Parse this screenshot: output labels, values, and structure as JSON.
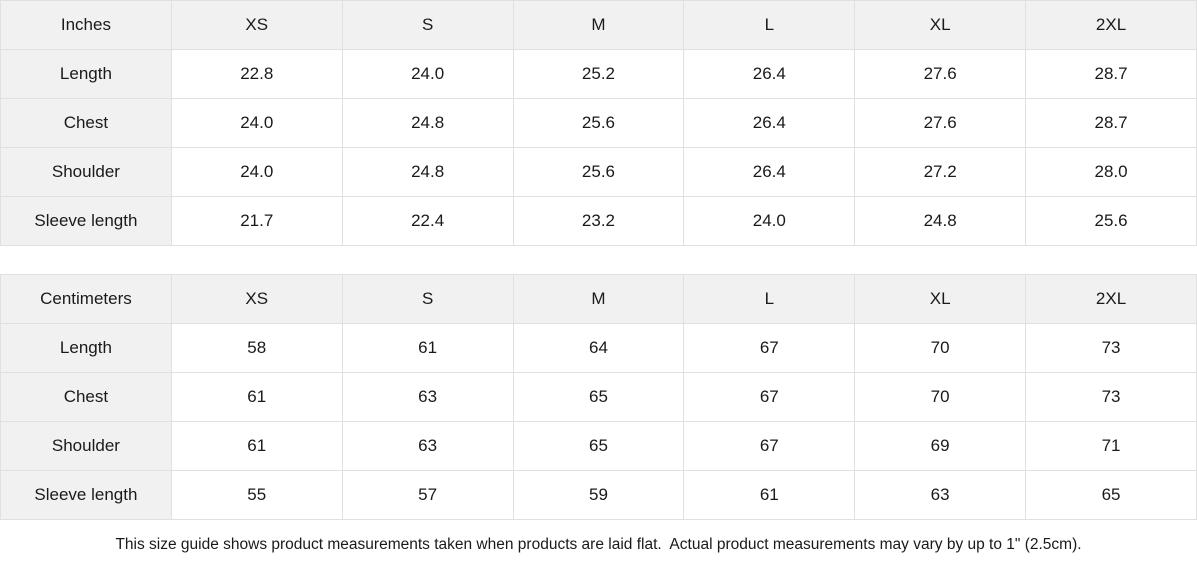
{
  "chart_data": [
    {
      "type": "table",
      "title": "Inches",
      "columns": [
        "XS",
        "S",
        "M",
        "L",
        "XL",
        "2XL"
      ],
      "rows": [
        {
          "label": "Length",
          "values": [
            "22.8",
            "24.0",
            "25.2",
            "26.4",
            "27.6",
            "28.7"
          ]
        },
        {
          "label": "Chest",
          "values": [
            "24.0",
            "24.8",
            "25.6",
            "26.4",
            "27.6",
            "28.7"
          ]
        },
        {
          "label": "Shoulder",
          "values": [
            "24.0",
            "24.8",
            "25.6",
            "26.4",
            "27.2",
            "28.0"
          ]
        },
        {
          "label": "Sleeve length",
          "values": [
            "21.7",
            "22.4",
            "23.2",
            "24.0",
            "24.8",
            "25.6"
          ]
        }
      ]
    },
    {
      "type": "table",
      "title": "Centimeters",
      "columns": [
        "XS",
        "S",
        "M",
        "L",
        "XL",
        "2XL"
      ],
      "rows": [
        {
          "label": "Length",
          "values": [
            "58",
            "61",
            "64",
            "67",
            "70",
            "73"
          ]
        },
        {
          "label": "Chest",
          "values": [
            "61",
            "63",
            "65",
            "67",
            "70",
            "73"
          ]
        },
        {
          "label": "Shoulder",
          "values": [
            "61",
            "63",
            "65",
            "67",
            "69",
            "71"
          ]
        },
        {
          "label": "Sleeve length",
          "values": [
            "55",
            "57",
            "59",
            "61",
            "63",
            "65"
          ]
        }
      ]
    }
  ],
  "footer": {
    "note": "This size guide shows product measurements taken when products are laid flat.  Actual product measurements may vary by up to 1\" (2.5cm)."
  },
  "colors": {
    "shaded_cell_bg": "#f1f1f1",
    "cell_border": "#e0e0e0",
    "text": "#1a1a1a",
    "background": "#ffffff"
  }
}
